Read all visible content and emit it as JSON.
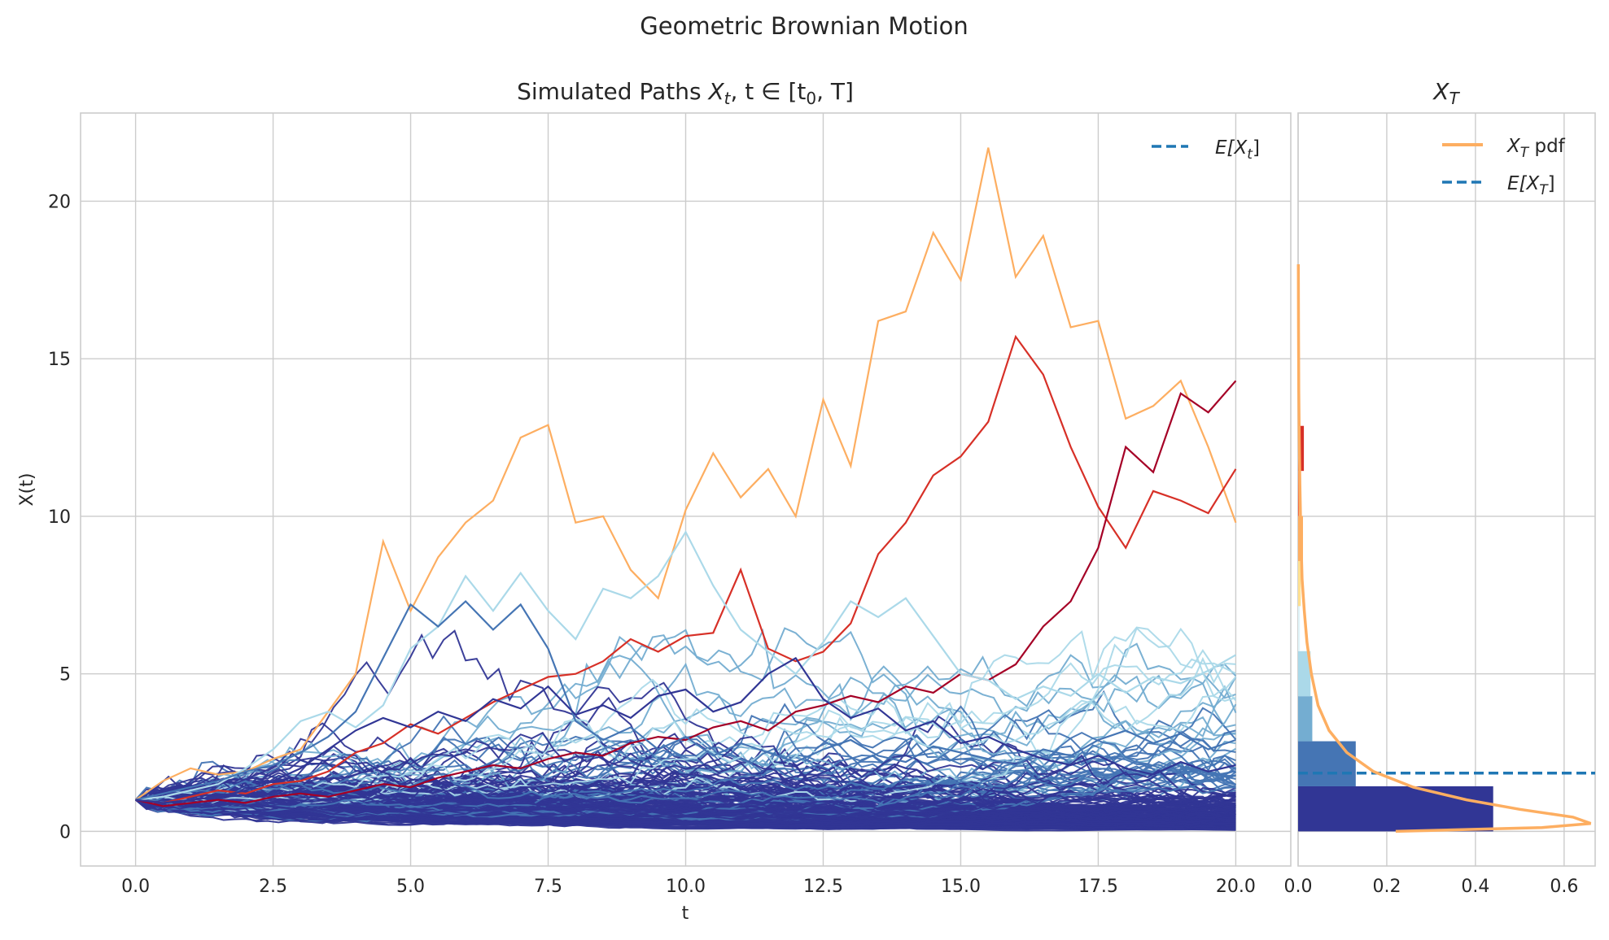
{
  "figure": {
    "suptitle": "Geometric Brownian Motion"
  },
  "paths_panel": {
    "title_prefix": "Simulated Paths ",
    "title_math": "X",
    "title_math_sub": "t",
    "title_math_rest": ", t ∈ [t",
    "title_math_sub2": "0",
    "title_math_end": ", T]",
    "xlabel": "t",
    "ylabel": "X(t)",
    "legend": [
      {
        "label_main": "E[X",
        "label_sub": "t",
        "label_end": "]",
        "color": "#1f77b4",
        "style": "dashed"
      }
    ]
  },
  "hist_panel": {
    "title_main": "X",
    "title_sub": "T",
    "legend": [
      {
        "label_main": "X",
        "label_sub": "T",
        "label_end": " pdf",
        "color": "#fdae61",
        "style": "solid"
      },
      {
        "label_main": "E[X",
        "label_sub": "T",
        "label_end": "]",
        "color": "#1f77b4",
        "style": "dashed"
      }
    ]
  },
  "chart_data": [
    {
      "type": "line",
      "title": "Simulated Paths X_t, t ∈ [t_0, T]",
      "xlabel": "t",
      "ylabel": "X(t)",
      "xlim": [
        -1.0,
        21.0
      ],
      "ylim": [
        -1.1,
        22.8
      ],
      "xticks": [
        0.0,
        2.5,
        5.0,
        7.5,
        10.0,
        12.5,
        15.0,
        17.5,
        20.0
      ],
      "xtick_labels": [
        "0.0",
        "2.5",
        "5.0",
        "7.5",
        "10.0",
        "12.5",
        "15.0",
        "17.5",
        "20.0"
      ],
      "yticks": [
        0,
        5,
        10,
        15,
        20
      ],
      "ytick_labels": [
        "0",
        "5",
        "10",
        "15",
        "20"
      ],
      "grid": true,
      "legend_position": "top-right",
      "t_start": 0.0,
      "t_end": 20.0,
      "x0": 1.0,
      "expected_value_line": {
        "label": "E[X_t]",
        "value_at_t0": 1.0,
        "color": "#1f77b4",
        "style": "dashed"
      },
      "colormap": [
        "#313695",
        "#4575b4",
        "#74add1",
        "#abd9e9",
        "#e0f3f8",
        "#fee090",
        "#fdae61",
        "#f46d43",
        "#d73027",
        "#a50026"
      ],
      "highlighted_series": [
        {
          "name": "path_orange",
          "color": "#fdae61",
          "values": [
            1.0,
            1.6,
            2.0,
            1.8,
            1.9,
            2.3,
            2.6,
            3.8,
            5.0,
            9.2,
            7.0,
            8.7,
            9.8,
            10.5,
            12.5,
            12.9,
            9.8,
            10.0,
            8.3,
            7.4,
            10.2,
            12.0,
            10.6,
            11.5,
            10.0,
            13.7,
            11.6,
            16.2,
            16.5,
            19.0,
            17.5,
            21.7,
            17.6,
            18.9,
            16.0,
            16.2,
            13.1,
            13.5,
            14.3,
            12.2,
            9.8
          ]
        },
        {
          "name": "path_red",
          "color": "#d73027",
          "values": [
            1.0,
            0.9,
            1.1,
            1.3,
            1.2,
            1.5,
            1.6,
            1.9,
            2.5,
            2.8,
            3.4,
            3.1,
            3.6,
            4.1,
            4.5,
            4.9,
            5.0,
            5.4,
            6.1,
            5.7,
            6.2,
            6.3,
            8.3,
            5.8,
            5.4,
            5.7,
            6.6,
            8.8,
            9.8,
            11.3,
            11.9,
            13.0,
            15.7,
            14.5,
            12.2,
            10.3,
            9.0,
            10.8,
            10.5,
            10.1,
            11.5
          ]
        },
        {
          "name": "path_darkred",
          "color": "#a50026",
          "values": [
            1.0,
            0.8,
            0.9,
            1.0,
            0.9,
            1.1,
            1.2,
            1.1,
            1.3,
            1.5,
            1.4,
            1.7,
            1.9,
            2.1,
            2.0,
            2.3,
            2.5,
            2.4,
            2.8,
            3.0,
            2.9,
            3.3,
            3.5,
            3.2,
            3.8,
            4.0,
            4.3,
            4.1,
            4.6,
            4.4,
            5.0,
            4.8,
            5.3,
            6.5,
            7.3,
            9.0,
            12.2,
            11.4,
            13.9,
            13.3,
            14.3
          ]
        },
        {
          "name": "path_lightblue",
          "color": "#abd9e9",
          "values": [
            1.0,
            1.1,
            1.3,
            1.5,
            2.0,
            2.6,
            3.5,
            3.8,
            3.3,
            4.0,
            5.8,
            6.5,
            8.1,
            7.0,
            8.2,
            7.0,
            6.1,
            7.7,
            7.4,
            8.1,
            9.5,
            7.8,
            6.4,
            5.7,
            5.0,
            6.0,
            7.3,
            6.8,
            7.4,
            6.2,
            5.0,
            4.8,
            4.2,
            4.6,
            4.3,
            5.0,
            4.4,
            4.9,
            4.7,
            5.1,
            5.6
          ]
        },
        {
          "name": "path_blue",
          "color": "#4575b4",
          "values": [
            1.0,
            1.2,
            1.4,
            1.6,
            1.9,
            2.1,
            2.5,
            3.0,
            3.8,
            5.5,
            7.2,
            6.5,
            7.3,
            6.4,
            7.2,
            5.8,
            3.5,
            2.9,
            3.3,
            2.6,
            3.0,
            2.4,
            2.8,
            2.5,
            2.2,
            2.6,
            2.9,
            2.4,
            2.2,
            2.7,
            2.5,
            2.3,
            2.1,
            2.6,
            2.4,
            2.9,
            3.2,
            2.8,
            3.1,
            2.6,
            2.9
          ]
        },
        {
          "name": "path_navy",
          "color": "#313695",
          "values": [
            1.0,
            0.9,
            1.0,
            1.1,
            1.3,
            1.6,
            2.0,
            2.6,
            3.2,
            3.6,
            3.3,
            3.8,
            3.5,
            4.2,
            3.9,
            4.6,
            3.7,
            4.0,
            3.6,
            4.3,
            4.5,
            3.8,
            4.1,
            5.0,
            5.5,
            4.2,
            3.6,
            3.9,
            3.2,
            3.5,
            2.8,
            3.0,
            2.6,
            2.3,
            2.1,
            2.4,
            2.0,
            1.8,
            2.2,
            1.9,
            2.1
          ]
        }
      ],
      "bulk_series_note_count": 200
    },
    {
      "type": "bar",
      "orientation": "horizontal",
      "title": "X_T",
      "xlim": [
        0.0,
        0.67
      ],
      "xticks": [
        0.0,
        0.2,
        0.4,
        0.6
      ],
      "xtick_labels": [
        "0.0",
        "0.2",
        "0.4",
        "0.6"
      ],
      "ylim": [
        -1.1,
        22.8
      ],
      "grid": true,
      "legend_position": "top-right",
      "bins": [
        {
          "y_low": 0.0,
          "y_high": 1.43,
          "density": 0.44,
          "color": "#313695"
        },
        {
          "y_low": 1.43,
          "y_high": 2.86,
          "density": 0.13,
          "color": "#4575b4"
        },
        {
          "y_low": 2.86,
          "y_high": 4.29,
          "density": 0.032,
          "color": "#74add1"
        },
        {
          "y_low": 4.29,
          "y_high": 5.72,
          "density": 0.028,
          "color": "#abd9e9"
        },
        {
          "y_low": 5.72,
          "y_high": 7.15,
          "density": 0.004,
          "color": "#e0f3f8"
        },
        {
          "y_low": 7.15,
          "y_high": 8.58,
          "density": 0.006,
          "color": "#fee090"
        },
        {
          "y_low": 8.58,
          "y_high": 10.01,
          "density": 0.011,
          "color": "#fdae61"
        },
        {
          "y_low": 10.01,
          "y_high": 11.44,
          "density": 0.002,
          "color": "#f46d43"
        },
        {
          "y_low": 11.44,
          "y_high": 12.87,
          "density": 0.013,
          "color": "#d73027"
        },
        {
          "y_low": 12.87,
          "y_high": 14.3,
          "density": 0.004,
          "color": "#a50026"
        }
      ],
      "pdf_curve": {
        "label": "X_T pdf",
        "color": "#fdae61",
        "x_density": [
          0.22,
          0.55,
          0.66,
          0.62,
          0.5,
          0.38,
          0.26,
          0.17,
          0.11,
          0.07,
          0.045,
          0.03,
          0.02,
          0.014,
          0.009,
          0.006,
          0.004,
          0.0025,
          0.0015,
          0.001,
          0.0005
        ],
        "y_values": [
          0.0,
          0.12,
          0.25,
          0.45,
          0.7,
          1.0,
          1.4,
          1.9,
          2.5,
          3.2,
          4.0,
          5.0,
          6.0,
          7.0,
          8.0,
          9.5,
          11.0,
          12.5,
          14.0,
          16.0,
          18.0
        ]
      },
      "expected_value_line": {
        "label": "E[X_T]",
        "value": 1.85,
        "color": "#1f77b4",
        "style": "dashed"
      }
    }
  ]
}
